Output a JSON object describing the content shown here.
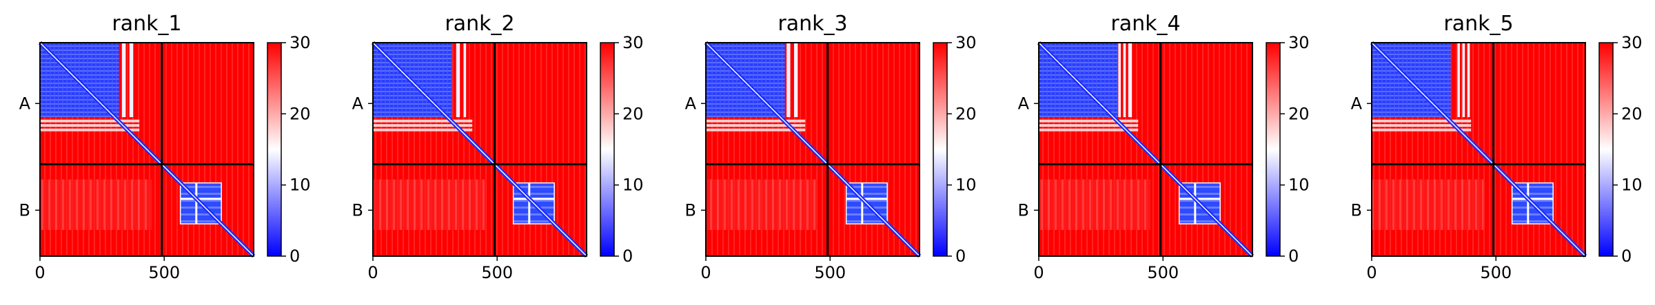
{
  "chart_data": {
    "type": "heatmap",
    "colormap": {
      "name": "bwr",
      "vmin": 0,
      "vmax": 30,
      "low_color": "#0000ff",
      "mid_color": "#ffffff",
      "high_color": "#ff0000",
      "colorbar_ticks": [
        "0",
        "10",
        "20",
        "30"
      ]
    },
    "x_tick_labels": [
      "0",
      "500"
    ],
    "x_tick_values": [
      0,
      500
    ],
    "x_range": [
      0,
      860
    ],
    "chains": [
      {
        "name": "A",
        "start": 0,
        "end": 490
      },
      {
        "name": "B",
        "start": 490,
        "end": 860
      }
    ],
    "panels": [
      {
        "title": "rank_1",
        "bright_bands": [
          [
            330,
            345
          ],
          [
            360,
            375
          ]
        ]
      },
      {
        "title": "rank_2",
        "bright_bands": [
          [
            335,
            350
          ],
          [
            365,
            375
          ]
        ]
      },
      {
        "title": "rank_3",
        "bright_bands": [
          [
            325,
            340
          ],
          [
            355,
            370
          ]
        ]
      },
      {
        "title": "rank_4",
        "bright_bands": [
          [
            320,
            330
          ],
          [
            340,
            350
          ],
          [
            360,
            375
          ]
        ]
      },
      {
        "title": "rank_5",
        "bright_bands": [
          [
            345,
            355
          ],
          [
            365,
            375
          ],
          [
            385,
            395
          ]
        ]
      }
    ]
  }
}
